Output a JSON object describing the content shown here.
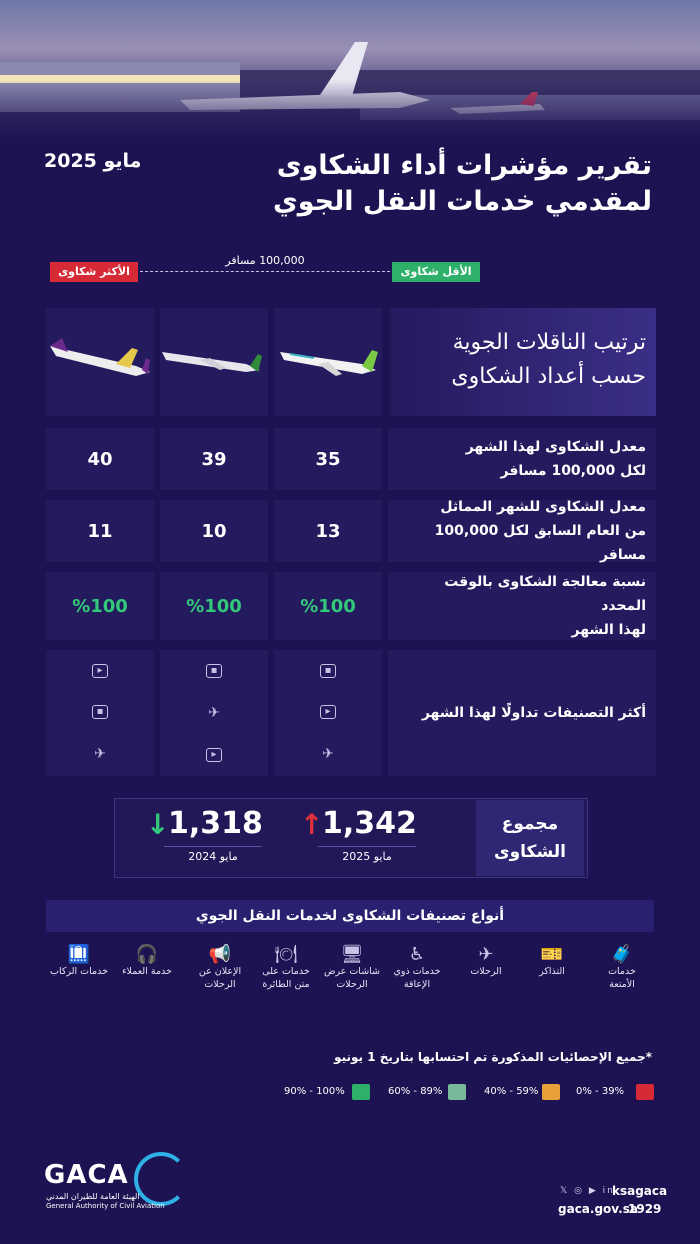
{
  "report": {
    "title_line1": "تقرير مؤشرات أداء الشكاوى",
    "title_line2": "لمقدمي خدمات النقل الجوي",
    "date": "مايو 2025"
  },
  "scale": {
    "most_label": "الأكثر شكاوى",
    "least_label": "الأقل شكاوى",
    "per_label": "100,000 مسافر"
  },
  "ranking": {
    "heading_line1": "ترتيب الناقلات الجوية",
    "heading_line2": "حسب أعداد الشكاوى",
    "airlines": [
      "flynas",
      "saudia",
      "flyadeal"
    ]
  },
  "rows": {
    "monthly_rate": {
      "label_line1": "معدل الشكاوى لهذا الشهر",
      "label_line2": "لكل 100,000 مسافر",
      "values": [
        "35",
        "39",
        "40"
      ]
    },
    "last_year_rate": {
      "label_line1": "معدل الشكاوى للشهر المماثل",
      "label_line2": "من العام السابق لكل 100,000 مسافر",
      "values": [
        "13",
        "10",
        "11"
      ]
    },
    "on_time": {
      "label_line1": "نسبة معالجة الشكاوى بالوقت المحدد",
      "label_line2": "لهذا الشهر",
      "values": [
        "%100",
        "%100",
        "%100"
      ],
      "color": "#33c97a"
    },
    "top_categories": {
      "label": "أكثر التصنيفات تداولًا لهذا الشهر",
      "icons": [
        [
          "luggage-icon",
          "ticket-icon",
          "plane-icon"
        ],
        [
          "luggage-icon",
          "plane-icon",
          "ticket-icon"
        ],
        [
          "ticket-icon",
          "luggage-icon",
          "plane-icon"
        ]
      ]
    }
  },
  "totals": {
    "label_line1": "مجموع",
    "label_line2": "الشكاوى",
    "current_value": "1,342",
    "current_period": "مايو 2025",
    "previous_value": "1,318",
    "previous_period": "مايو 2024",
    "up_color": "#e0313a",
    "down_color": "#33c97a"
  },
  "categories": {
    "heading": "أنواع تصنيفات الشكاوى لخدمات النقل الجوي",
    "items": [
      {
        "icon": "luggage-icon",
        "line1": "خدمات",
        "line2": "الأمتعة"
      },
      {
        "icon": "ticket-icon",
        "line1": "التذاكر",
        "line2": ""
      },
      {
        "icon": "plane-icon",
        "line1": "الرحلات",
        "line2": ""
      },
      {
        "icon": "accessibility-icon",
        "line1": "خدمات ذوي",
        "line2": "الإعاقة"
      },
      {
        "icon": "screen-icon",
        "line1": "شاشات عرض",
        "line2": "الرحلات"
      },
      {
        "icon": "onboard-service-icon",
        "line1": "خدمات على",
        "line2": "متن الطائرة"
      },
      {
        "icon": "megaphone-icon",
        "line1": "الإعلان عن",
        "line2": "الرحلات"
      },
      {
        "icon": "customer-service-icon",
        "line1": "خدمة العملاء",
        "line2": ""
      },
      {
        "icon": "passenger-services-icon",
        "line1": "خدمات الركاب",
        "line2": ""
      }
    ]
  },
  "note": "*جميع الإحصائيات المذكورة تم احتسابها بتاريخ 1 يونيو",
  "legend": [
    {
      "label": "0% - 39%",
      "color": "#d62b36"
    },
    {
      "label": "40% - 59%",
      "color": "#e8a13a"
    },
    {
      "label": "60% - 89%",
      "color": "#7ab89a"
    },
    {
      "label": "90% - 100%",
      "color": "#2fb06a"
    }
  ],
  "footer": {
    "logo_text": "GACA",
    "logo_sub_ar": "الهيئة العامة للطيران المدني",
    "logo_sub_en": "General Authority of Civil Aviation",
    "social_handle": "ksagaca",
    "website": "gaca.gov.sa",
    "phone": "1929"
  }
}
